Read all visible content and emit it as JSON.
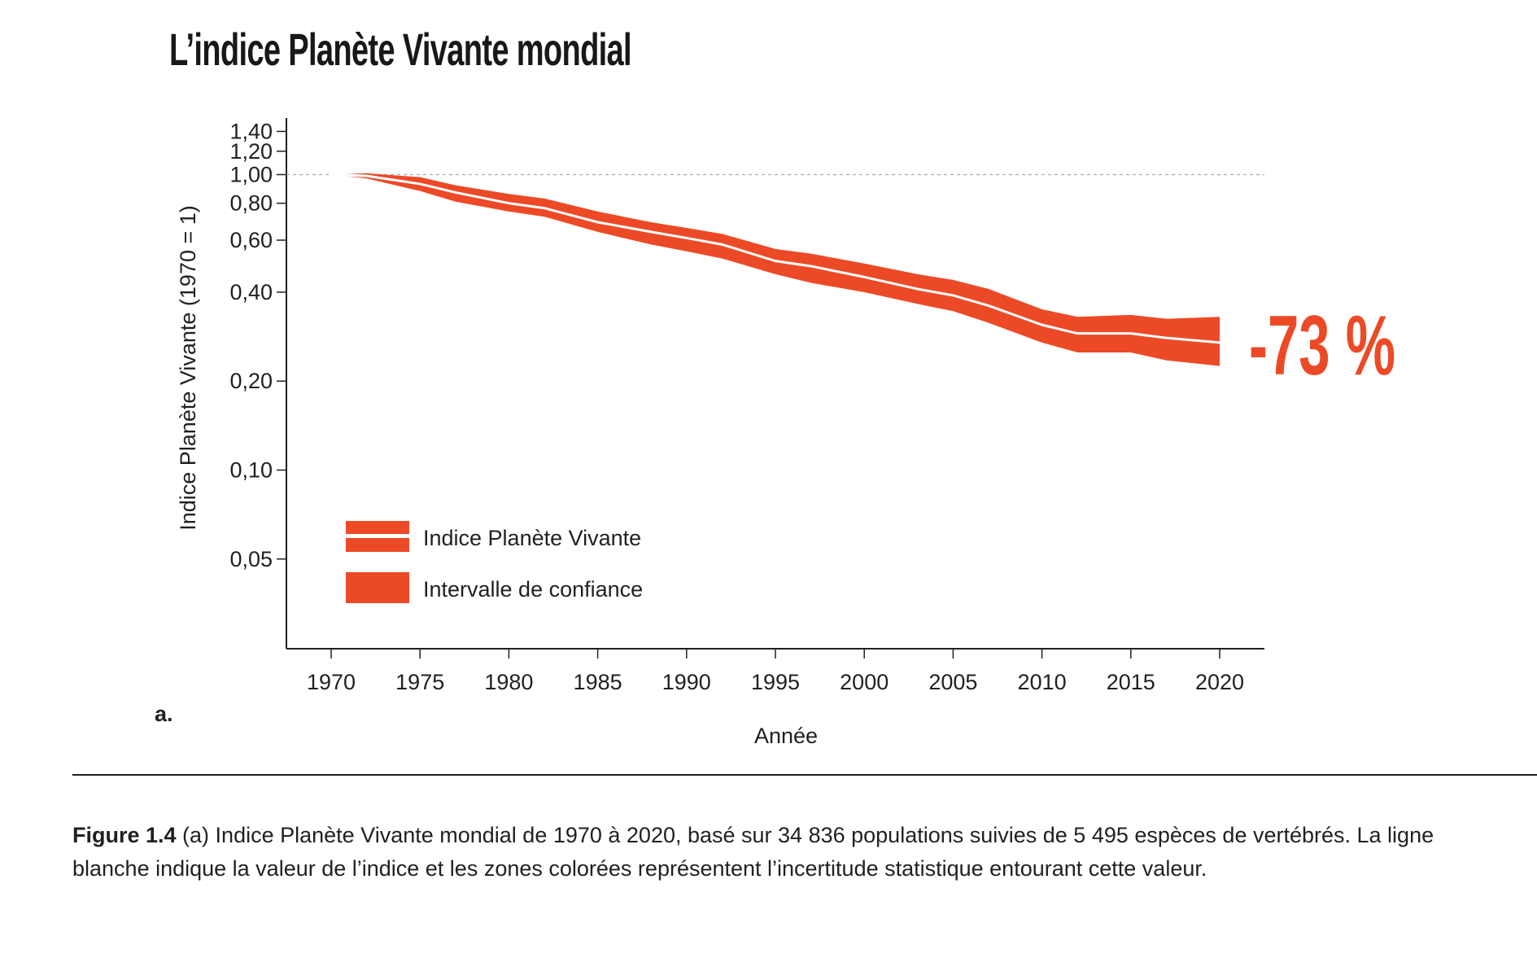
{
  "title": "L’indice Planète Vivante mondial",
  "panel_label": "a.",
  "highlight": "-73 %",
  "caption": {
    "figure": "Figure 1.4",
    "text": " (a) Indice Planète Vivante mondial de 1970 à 2020, basé sur 34 836 populations suivies de 5 495 espèces de vertébrés. La ligne blanche indique la valeur de l’indice et les zones colorées représentent l’incertitude statistique entourant cette valeur."
  },
  "colors": {
    "band": "#ec4a26",
    "line": "#ffffff",
    "reference": "#aaaaaa"
  },
  "chart_data": {
    "type": "area",
    "title": "L’indice Planète Vivante mondial",
    "xlabel": "Année",
    "ylabel": "Indice Planète Vivante (1970 = 1)",
    "yscale": "log",
    "ylim": [
      0.035,
      1.45
    ],
    "xlim": [
      1967.5,
      2022.5
    ],
    "xticks": [
      "1970",
      "1975",
      "1980",
      "1985",
      "1990",
      "1995",
      "2000",
      "2005",
      "2010",
      "2015",
      "2020"
    ],
    "yticks": [
      {
        "value": 1.4,
        "label": "1,40"
      },
      {
        "value": 1.2,
        "label": "1,20"
      },
      {
        "value": 1.0,
        "label": "1,00"
      },
      {
        "value": 0.8,
        "label": "0,80"
      },
      {
        "value": 0.6,
        "label": "0,60"
      },
      {
        "value": 0.4,
        "label": "0,40"
      },
      {
        "value": 0.2,
        "label": "0,20"
      },
      {
        "value": 0.1,
        "label": "0,10"
      },
      {
        "value": 0.05,
        "label": "0,05"
      }
    ],
    "reference_line": 1.0,
    "legend": {
      "position": "bottom-left",
      "items": [
        "Indice Planète Vivante",
        "Intervalle de confiance"
      ]
    },
    "x": [
      1970,
      1972,
      1975,
      1977,
      1980,
      1982,
      1985,
      1988,
      1990,
      1992,
      1995,
      1997,
      2000,
      2003,
      2005,
      2007,
      2010,
      2012,
      2015,
      2017,
      2020
    ],
    "index": [
      1.0,
      0.99,
      0.93,
      0.87,
      0.8,
      0.77,
      0.69,
      0.64,
      0.61,
      0.58,
      0.51,
      0.49,
      0.45,
      0.41,
      0.39,
      0.36,
      0.31,
      0.29,
      0.29,
      0.28,
      0.27
    ],
    "lower": [
      1.0,
      0.97,
      0.88,
      0.81,
      0.75,
      0.72,
      0.64,
      0.58,
      0.55,
      0.52,
      0.46,
      0.43,
      0.4,
      0.365,
      0.345,
      0.315,
      0.27,
      0.25,
      0.25,
      0.235,
      0.225
    ],
    "upper": [
      1.0,
      1.01,
      0.98,
      0.92,
      0.86,
      0.83,
      0.75,
      0.69,
      0.66,
      0.63,
      0.56,
      0.54,
      0.5,
      0.46,
      0.44,
      0.41,
      0.35,
      0.33,
      0.335,
      0.325,
      0.33
    ]
  }
}
